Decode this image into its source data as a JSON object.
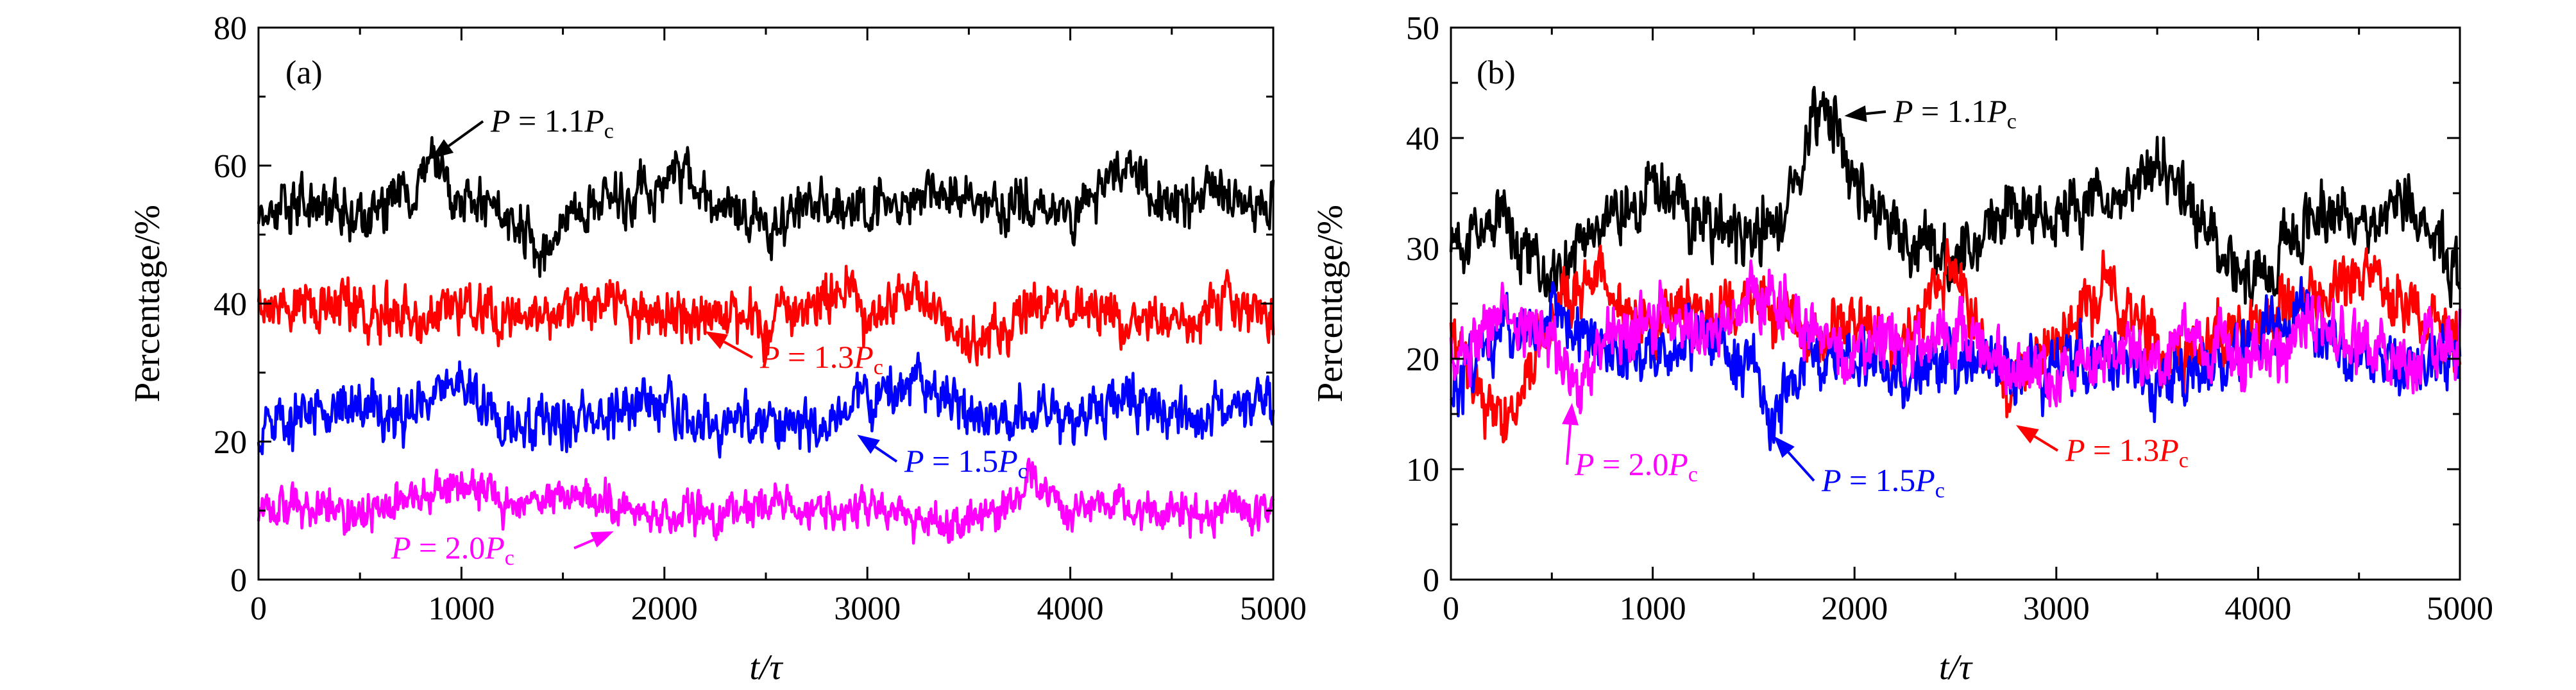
{
  "chart_data": [
    {
      "type": "line",
      "panel_label": "(a)",
      "xlabel": "t/τ",
      "ylabel": "Percentage/%",
      "xlim": [
        0,
        5000
      ],
      "ylim": [
        0,
        80
      ],
      "x_ticks": [
        0,
        1000,
        2000,
        3000,
        4000,
        5000
      ],
      "y_ticks": [
        0,
        20,
        40,
        60,
        80
      ],
      "series": [
        {
          "name": "P = 1.1P_c",
          "color": "#000000",
          "approx_mean": 54,
          "amplitude": 4,
          "x": [
            0,
            250,
            500,
            750,
            850,
            1000,
            1250,
            1400,
            1500,
            1750,
            2000,
            2100,
            2250,
            2500,
            2750,
            3000,
            3300,
            3500,
            3750,
            4000,
            4300,
            4500,
            4750,
            5000
          ],
          "values": [
            54,
            55,
            53,
            56,
            61,
            55,
            53,
            47,
            53,
            55,
            57,
            58,
            55,
            51,
            55,
            53,
            58,
            54,
            54,
            53,
            60,
            55,
            56,
            54
          ]
        },
        {
          "name": "P = 1.3P_c",
          "color": "#ff0000",
          "approx_mean": 39,
          "amplitude": 4,
          "x": [
            0,
            250,
            500,
            750,
            1000,
            1250,
            1500,
            1750,
            2000,
            2250,
            2500,
            2750,
            2900,
            3000,
            3200,
            3500,
            3750,
            4000,
            4250,
            4500,
            4750,
            5000
          ],
          "values": [
            38,
            40,
            39,
            37,
            40,
            38,
            39,
            40,
            38,
            39,
            37,
            40,
            44,
            38,
            42,
            34,
            38,
            40,
            38,
            37,
            40,
            38
          ]
        },
        {
          "name": "P = 1.5P_c",
          "color": "#0000ff",
          "approx_mean": 24,
          "amplitude": 4,
          "x": [
            0,
            250,
            500,
            750,
            1000,
            1250,
            1500,
            1750,
            2000,
            2250,
            2500,
            2750,
            3000,
            3250,
            3500,
            3750,
            4000,
            4250,
            4500,
            4750,
            5000
          ],
          "values": [
            21,
            24,
            25,
            24,
            28,
            21,
            23,
            24,
            25,
            22,
            24,
            22,
            26,
            29,
            24,
            25,
            23,
            26,
            23,
            24,
            27
          ]
        },
        {
          "name": "P = 2.0P_c",
          "color": "#ff00ff",
          "approx_mean": 10,
          "amplitude": 3,
          "x": [
            0,
            250,
            500,
            750,
            1000,
            1250,
            1500,
            1750,
            2000,
            2250,
            2500,
            2750,
            3000,
            3250,
            3500,
            3750,
            3800,
            4000,
            4250,
            4500,
            4750,
            5000
          ],
          "values": [
            10,
            11,
            10,
            12,
            14,
            10,
            12,
            11,
            10,
            9,
            11,
            10,
            11,
            9,
            8,
            11,
            15,
            10,
            11,
            9,
            10,
            9
          ]
        }
      ],
      "annotations": [
        {
          "prefix": "P",
          "eq": "=",
          "num": "1.1",
          "var": "P",
          "sub": "c",
          "series_index": 0,
          "target_x": 850,
          "target_y": 61
        },
        {
          "prefix": "P",
          "eq": "=",
          "num": "1.3",
          "var": "P",
          "sub": "c",
          "series_index": 1,
          "target_x": 2200,
          "target_y": 36
        },
        {
          "prefix": "P",
          "eq": "=",
          "num": "1.5",
          "var": "P",
          "sub": "c",
          "series_index": 2,
          "target_x": 2950,
          "target_y": 21
        },
        {
          "prefix": "P",
          "eq": "=",
          "num": "2.0",
          "var": "P",
          "sub": "c",
          "series_index": 3,
          "target_x": 1750,
          "target_y": 7
        }
      ]
    },
    {
      "type": "line",
      "panel_label": "(b)",
      "xlabel": "t/τ",
      "ylabel": "Percentage/%",
      "xlim": [
        0,
        5000
      ],
      "ylim": [
        0,
        50
      ],
      "x_ticks": [
        0,
        1000,
        2000,
        3000,
        4000,
        5000
      ],
      "y_ticks": [
        0,
        10,
        20,
        30,
        40,
        50
      ],
      "series": [
        {
          "name": "P = 1.1P_c",
          "color": "#000000",
          "approx_mean": 32,
          "amplitude": 3,
          "x": [
            0,
            250,
            500,
            750,
            1000,
            1250,
            1500,
            1650,
            1800,
            1900,
            2000,
            2250,
            2500,
            2750,
            3000,
            3250,
            3500,
            3750,
            4000,
            4250,
            4500,
            4750,
            5000
          ],
          "values": [
            30,
            33,
            27,
            33,
            35,
            32,
            31,
            33,
            41,
            42,
            36,
            31,
            29,
            33,
            33,
            34,
            38,
            32,
            27,
            33,
            32,
            34,
            27
          ]
        },
        {
          "name": "P = 1.3P_c",
          "color": "#ff0000",
          "approx_mean": 22,
          "amplitude": 3,
          "x": [
            0,
            250,
            500,
            750,
            1000,
            1250,
            1500,
            1750,
            2000,
            2250,
            2500,
            2750,
            3000,
            3250,
            3500,
            3750,
            4000,
            4250,
            4500,
            4750,
            5000
          ],
          "values": [
            22,
            14,
            24,
            28,
            22,
            24,
            26,
            22,
            23,
            21,
            28,
            17,
            22,
            27,
            20,
            21,
            24,
            25,
            28,
            24,
            22
          ]
        },
        {
          "name": "P = 1.5P_c",
          "color": "#0000ff",
          "approx_mean": 20,
          "amplitude": 3,
          "x": [
            0,
            250,
            500,
            750,
            1000,
            1250,
            1500,
            1600,
            1750,
            2000,
            2250,
            2500,
            2750,
            3000,
            3250,
            3500,
            3750,
            4000,
            4250,
            4500,
            4750,
            5000
          ],
          "values": [
            18,
            22,
            24,
            21,
            20,
            22,
            19,
            14,
            20,
            21,
            19,
            20,
            19,
            19,
            20,
            18,
            19,
            22,
            24,
            20,
            19,
            21
          ]
        },
        {
          "name": "P = 2.0P_c",
          "color": "#ff00ff",
          "approx_mean": 21,
          "amplitude": 3,
          "x": [
            0,
            250,
            500,
            600,
            750,
            1000,
            1250,
            1500,
            1750,
            2000,
            2250,
            2500,
            2750,
            3000,
            3250,
            3500,
            3750,
            4000,
            4250,
            4500,
            4750,
            5000
          ],
          "values": [
            20,
            23,
            22,
            17,
            21,
            24,
            22,
            26,
            23,
            20,
            21,
            22,
            20,
            19,
            21,
            20,
            22,
            20,
            23,
            21,
            20,
            22
          ]
        }
      ],
      "annotations": [
        {
          "prefix": "P",
          "eq": "=",
          "num": "1.1",
          "var": "P",
          "sub": "c",
          "series_index": 0,
          "target_x": 1950,
          "target_y": 42
        },
        {
          "prefix": "P",
          "eq": "=",
          "num": "2.0",
          "var": "P",
          "sub": "c",
          "series_index": 3,
          "target_x": 600,
          "target_y": 16
        },
        {
          "prefix": "P",
          "eq": "=",
          "num": "1.5",
          "var": "P",
          "sub": "c",
          "series_index": 2,
          "target_x": 1600,
          "target_y": 13
        },
        {
          "prefix": "P",
          "eq": "=",
          "num": "1.3",
          "var": "P",
          "sub": "c",
          "series_index": 1,
          "target_x": 2800,
          "target_y": 14
        }
      ]
    }
  ]
}
